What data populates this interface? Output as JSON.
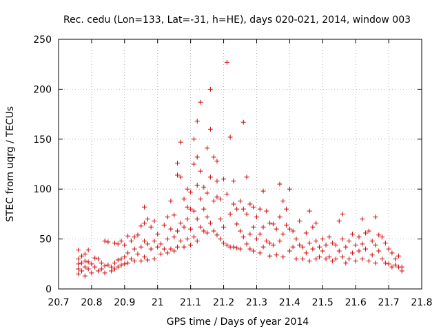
{
  "chart_data": {
    "type": "scatter",
    "title": "Rec. cedu (Lon=133, Lat=-31, h=HE), days 020-021, 2014, window 003",
    "xlabel": "GPS time / Days of year 2014",
    "ylabel": "STEC from uqrg / TECUs",
    "xlim": [
      20.7,
      21.8
    ],
    "ylim": [
      0,
      250
    ],
    "xticks": [
      "20.7",
      "20.8",
      "20.9",
      "21",
      "21.1",
      "21.2",
      "21.3",
      "21.4",
      "21.5",
      "21.6",
      "21.7",
      "21.8"
    ],
    "yticks": [
      "0",
      "50",
      "100",
      "150",
      "200",
      "250"
    ],
    "grid": true,
    "marker": "+",
    "color": "#cc0000",
    "series": [
      {
        "name": "stec",
        "points": [
          [
            20.76,
            39
          ],
          [
            20.76,
            30
          ],
          [
            20.76,
            25
          ],
          [
            20.76,
            20
          ],
          [
            20.76,
            15
          ],
          [
            20.77,
            33
          ],
          [
            20.77,
            26
          ],
          [
            20.77,
            18
          ],
          [
            20.78,
            35
          ],
          [
            20.78,
            28
          ],
          [
            20.78,
            22
          ],
          [
            20.78,
            13
          ],
          [
            20.79,
            39
          ],
          [
            20.79,
            27
          ],
          [
            20.79,
            20
          ],
          [
            20.8,
            25
          ],
          [
            20.8,
            16
          ],
          [
            20.81,
            31
          ],
          [
            20.81,
            22
          ],
          [
            20.82,
            30
          ],
          [
            20.82,
            18
          ],
          [
            20.83,
            26
          ],
          [
            20.83,
            20
          ],
          [
            20.84,
            48
          ],
          [
            20.84,
            23
          ],
          [
            20.84,
            16
          ],
          [
            20.85,
            47
          ],
          [
            20.85,
            24
          ],
          [
            20.86,
            22
          ],
          [
            20.86,
            18
          ],
          [
            20.87,
            46
          ],
          [
            20.87,
            26
          ],
          [
            20.87,
            20
          ],
          [
            20.88,
            45
          ],
          [
            20.88,
            29
          ],
          [
            20.88,
            22
          ],
          [
            20.89,
            48
          ],
          [
            20.89,
            30
          ],
          [
            20.89,
            24
          ],
          [
            20.9,
            44
          ],
          [
            20.9,
            32
          ],
          [
            20.9,
            25
          ],
          [
            20.91,
            53
          ],
          [
            20.91,
            36
          ],
          [
            20.91,
            26
          ],
          [
            20.92,
            48
          ],
          [
            20.92,
            30
          ],
          [
            20.93,
            52
          ],
          [
            20.93,
            40
          ],
          [
            20.93,
            28
          ],
          [
            20.94,
            54
          ],
          [
            20.94,
            35
          ],
          [
            20.95,
            63
          ],
          [
            20.95,
            42
          ],
          [
            20.95,
            28
          ],
          [
            20.96,
            82
          ],
          [
            20.96,
            66
          ],
          [
            20.96,
            48
          ],
          [
            20.96,
            32
          ],
          [
            20.97,
            70
          ],
          [
            20.97,
            45
          ],
          [
            20.97,
            29
          ],
          [
            20.98,
            62
          ],
          [
            20.98,
            40
          ],
          [
            20.99,
            68
          ],
          [
            20.99,
            48
          ],
          [
            20.99,
            30
          ],
          [
            21.0,
            55
          ],
          [
            21.0,
            42
          ],
          [
            21.01,
            45
          ],
          [
            21.01,
            35
          ],
          [
            21.02,
            64
          ],
          [
            21.02,
            40
          ],
          [
            21.03,
            72
          ],
          [
            21.03,
            50
          ],
          [
            21.03,
            36
          ],
          [
            21.04,
            88
          ],
          [
            21.04,
            60
          ],
          [
            21.04,
            40
          ],
          [
            21.05,
            74
          ],
          [
            21.05,
            52
          ],
          [
            21.05,
            38
          ],
          [
            21.06,
            126
          ],
          [
            21.06,
            114
          ],
          [
            21.06,
            58
          ],
          [
            21.06,
            42
          ],
          [
            21.07,
            147
          ],
          [
            21.07,
            112
          ],
          [
            21.07,
            66
          ],
          [
            21.07,
            48
          ],
          [
            21.08,
            90
          ],
          [
            21.08,
            62
          ],
          [
            21.08,
            42
          ],
          [
            21.09,
            100
          ],
          [
            21.09,
            82
          ],
          [
            21.09,
            70
          ],
          [
            21.09,
            50
          ],
          [
            21.1,
            97
          ],
          [
            21.1,
            80
          ],
          [
            21.1,
            60
          ],
          [
            21.1,
            44
          ],
          [
            21.11,
            150
          ],
          [
            21.11,
            125
          ],
          [
            21.11,
            78
          ],
          [
            21.11,
            52
          ],
          [
            21.12,
            168
          ],
          [
            21.12,
            132
          ],
          [
            21.12,
            104
          ],
          [
            21.12,
            70
          ],
          [
            21.12,
            48
          ],
          [
            21.13,
            187
          ],
          [
            21.13,
            118
          ],
          [
            21.13,
            90
          ],
          [
            21.13,
            62
          ],
          [
            21.14,
            102
          ],
          [
            21.14,
            80
          ],
          [
            21.14,
            58
          ],
          [
            21.15,
            141
          ],
          [
            21.15,
            96
          ],
          [
            21.15,
            72
          ],
          [
            21.15,
            56
          ],
          [
            21.16,
            200
          ],
          [
            21.16,
            160
          ],
          [
            21.16,
            112
          ],
          [
            21.16,
            66
          ],
          [
            21.17,
            132
          ],
          [
            21.17,
            88
          ],
          [
            21.17,
            58
          ],
          [
            21.18,
            128
          ],
          [
            21.18,
            108
          ],
          [
            21.18,
            92
          ],
          [
            21.18,
            54
          ],
          [
            21.19,
            90
          ],
          [
            21.19,
            70
          ],
          [
            21.19,
            50
          ],
          [
            21.2,
            110
          ],
          [
            21.2,
            62
          ],
          [
            21.2,
            46
          ],
          [
            21.21,
            227
          ],
          [
            21.21,
            95
          ],
          [
            21.21,
            44
          ],
          [
            21.22,
            152
          ],
          [
            21.22,
            75
          ],
          [
            21.22,
            42
          ],
          [
            21.23,
            108
          ],
          [
            21.23,
            85
          ],
          [
            21.23,
            42
          ],
          [
            21.24,
            80
          ],
          [
            21.24,
            65
          ],
          [
            21.24,
            41
          ],
          [
            21.25,
            88
          ],
          [
            21.25,
            58
          ],
          [
            21.25,
            40
          ],
          [
            21.26,
            167
          ],
          [
            21.26,
            80
          ],
          [
            21.26,
            52
          ],
          [
            21.27,
            112
          ],
          [
            21.27,
            75
          ],
          [
            21.27,
            45
          ],
          [
            21.28,
            85
          ],
          [
            21.28,
            55
          ],
          [
            21.28,
            40
          ],
          [
            21.29,
            82
          ],
          [
            21.29,
            62
          ],
          [
            21.29,
            38
          ],
          [
            21.3,
            72
          ],
          [
            21.3,
            50
          ],
          [
            21.31,
            80
          ],
          [
            21.31,
            55
          ],
          [
            21.31,
            36
          ],
          [
            21.32,
            98
          ],
          [
            21.32,
            62
          ],
          [
            21.32,
            42
          ],
          [
            21.33,
            78
          ],
          [
            21.33,
            48
          ],
          [
            21.34,
            66
          ],
          [
            21.34,
            46
          ],
          [
            21.34,
            33
          ],
          [
            21.35,
            65
          ],
          [
            21.35,
            44
          ],
          [
            21.36,
            60
          ],
          [
            21.36,
            34
          ],
          [
            21.37,
            105
          ],
          [
            21.37,
            72
          ],
          [
            21.37,
            48
          ],
          [
            21.38,
            88
          ],
          [
            21.38,
            55
          ],
          [
            21.38,
            32
          ],
          [
            21.39,
            80
          ],
          [
            21.39,
            64
          ],
          [
            21.4,
            100
          ],
          [
            21.4,
            60
          ],
          [
            21.4,
            38
          ],
          [
            21.41,
            58
          ],
          [
            21.41,
            42
          ],
          [
            21.42,
            50
          ],
          [
            21.42,
            30
          ],
          [
            21.43,
            68
          ],
          [
            21.43,
            44
          ],
          [
            21.44,
            42
          ],
          [
            21.44,
            30
          ],
          [
            21.45,
            56
          ],
          [
            21.45,
            36
          ],
          [
            21.46,
            78
          ],
          [
            21.46,
            46
          ],
          [
            21.46,
            28
          ],
          [
            21.47,
            62
          ],
          [
            21.47,
            40
          ],
          [
            21.48,
            66
          ],
          [
            21.48,
            48
          ],
          [
            21.48,
            30
          ],
          [
            21.49,
            42
          ],
          [
            21.49,
            32
          ],
          [
            21.5,
            50
          ],
          [
            21.5,
            38
          ],
          [
            21.51,
            44
          ],
          [
            21.51,
            30
          ],
          [
            21.52,
            52
          ],
          [
            21.52,
            32
          ],
          [
            21.53,
            46
          ],
          [
            21.53,
            28
          ],
          [
            21.54,
            44
          ],
          [
            21.54,
            30
          ],
          [
            21.55,
            68
          ],
          [
            21.55,
            38
          ],
          [
            21.56,
            75
          ],
          [
            21.56,
            50
          ],
          [
            21.56,
            32
          ],
          [
            21.57,
            42
          ],
          [
            21.57,
            26
          ],
          [
            21.58,
            48
          ],
          [
            21.58,
            30
          ],
          [
            21.59,
            55
          ],
          [
            21.59,
            36
          ],
          [
            21.6,
            44
          ],
          [
            21.6,
            28
          ],
          [
            21.61,
            52
          ],
          [
            21.61,
            38
          ],
          [
            21.62,
            70
          ],
          [
            21.62,
            45
          ],
          [
            21.62,
            30
          ],
          [
            21.63,
            56
          ],
          [
            21.63,
            40
          ],
          [
            21.64,
            58
          ],
          [
            21.64,
            28
          ],
          [
            21.65,
            48
          ],
          [
            21.65,
            34
          ],
          [
            21.66,
            72
          ],
          [
            21.66,
            44
          ],
          [
            21.66,
            26
          ],
          [
            21.67,
            54
          ],
          [
            21.67,
            38
          ],
          [
            21.68,
            52
          ],
          [
            21.68,
            30
          ],
          [
            21.69,
            46
          ],
          [
            21.69,
            26
          ],
          [
            21.7,
            40
          ],
          [
            21.7,
            25
          ],
          [
            21.71,
            36
          ],
          [
            21.71,
            22
          ],
          [
            21.72,
            30
          ],
          [
            21.72,
            24
          ],
          [
            21.73,
            33
          ],
          [
            21.73,
            22
          ],
          [
            21.74,
            22
          ],
          [
            21.74,
            18
          ]
        ]
      }
    ]
  }
}
